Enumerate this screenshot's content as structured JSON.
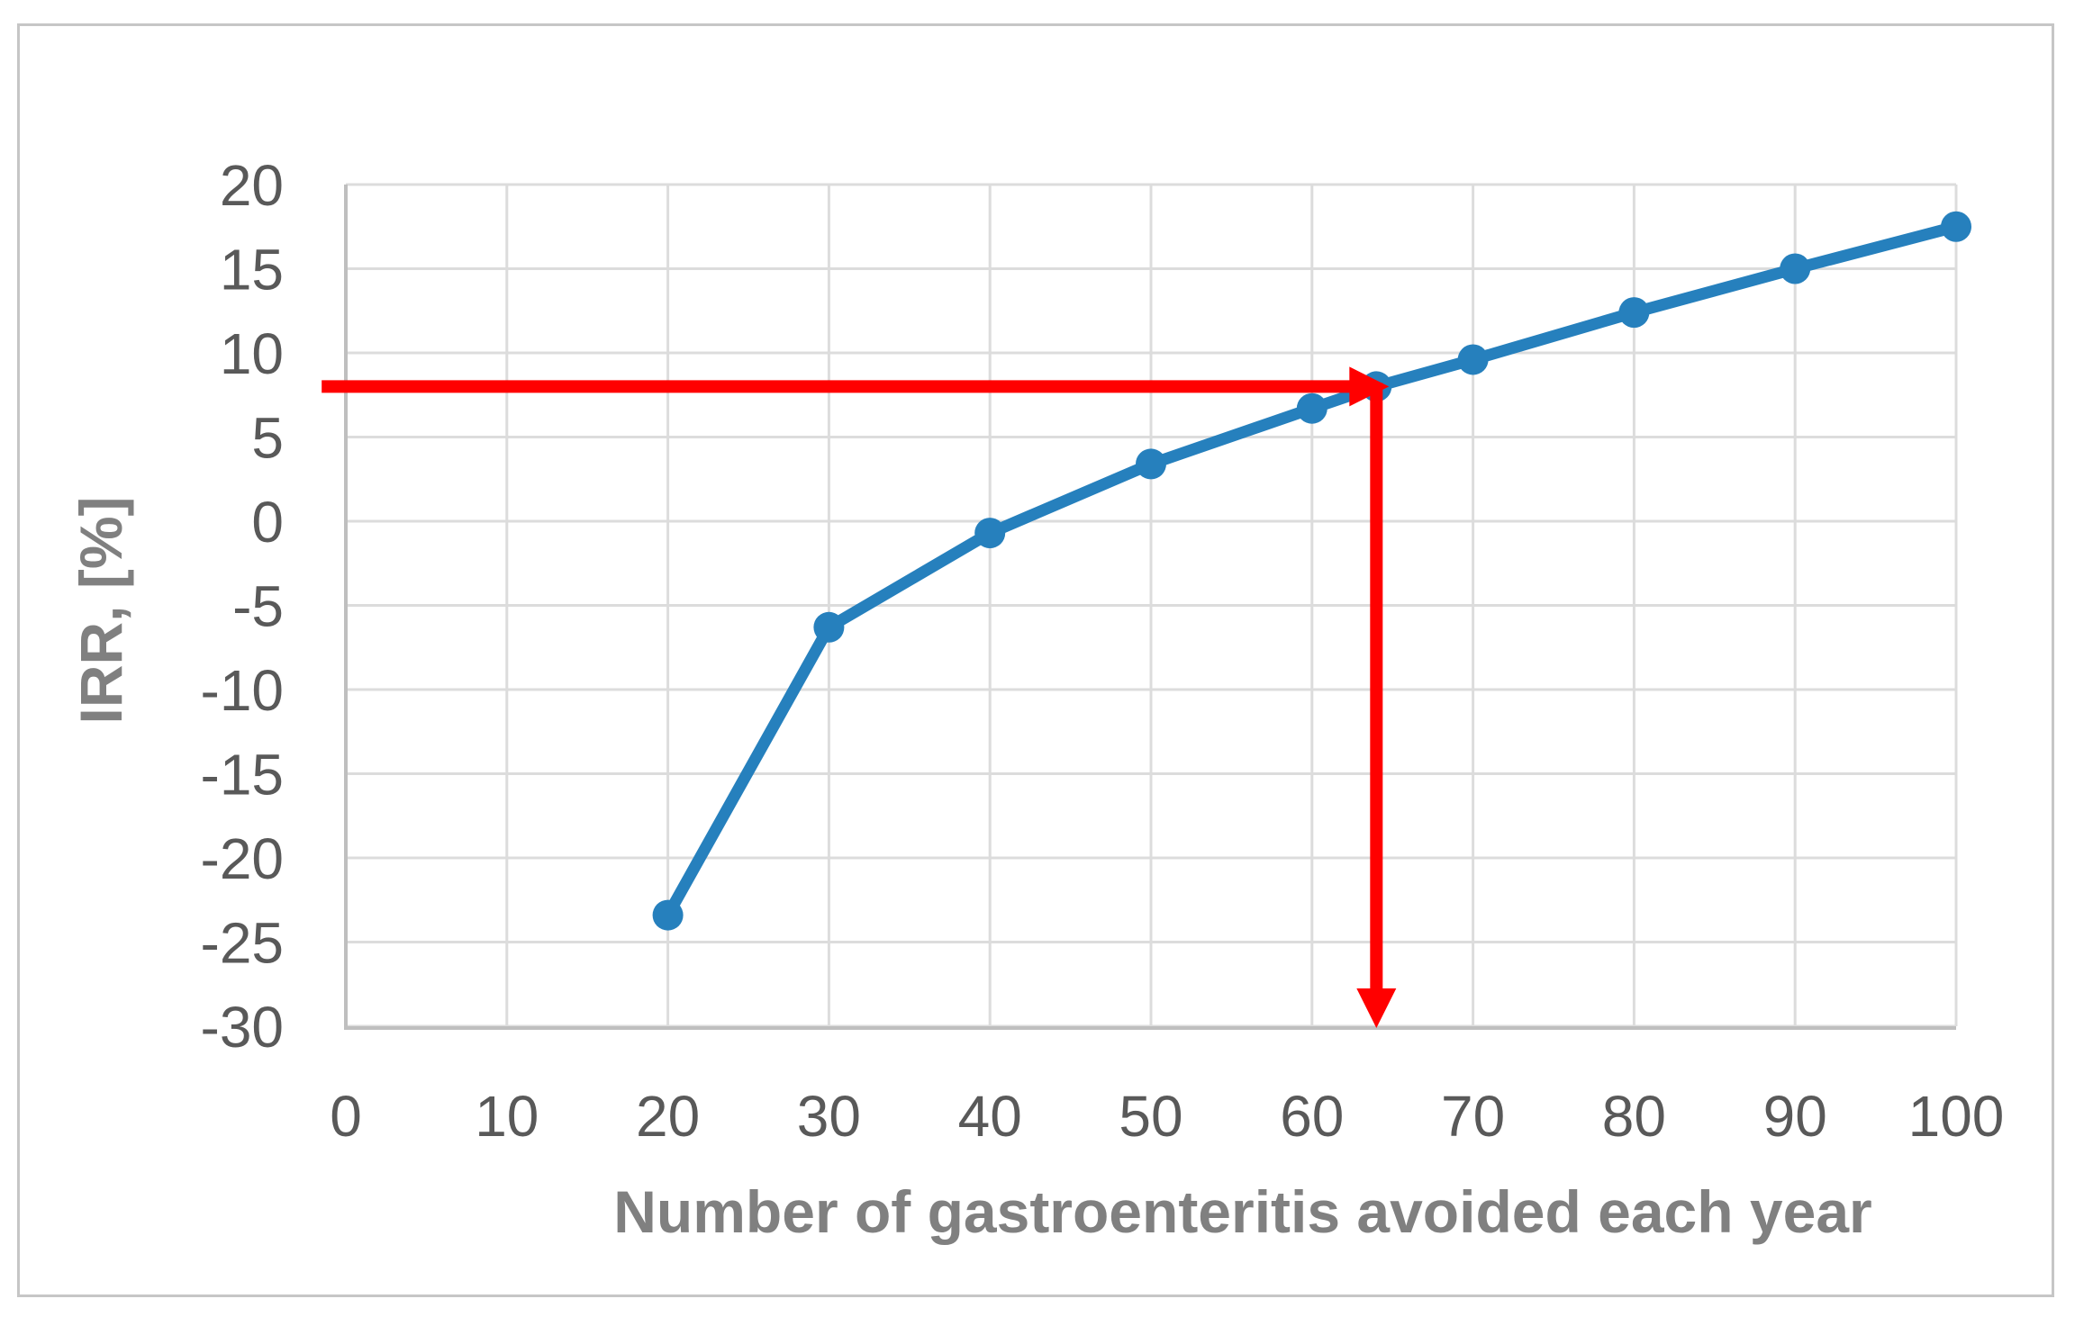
{
  "figure": {
    "background": "#ffffff",
    "border_color": "#c6c6c6"
  },
  "chart_data": {
    "type": "line",
    "title": "",
    "xlabel": "Number of gastroenteritis avoided each year",
    "ylabel": "IRR, [%]",
    "xlim": [
      0,
      100
    ],
    "ylim": [
      -30,
      20
    ],
    "x_ticks": [
      0,
      10,
      20,
      30,
      40,
      50,
      60,
      70,
      80,
      90,
      100
    ],
    "y_ticks": [
      20,
      15,
      10,
      5,
      0,
      -5,
      -10,
      -15,
      -20,
      -25,
      -30
    ],
    "grid": true,
    "legend": "none",
    "series": [
      {
        "name": "IRR",
        "color": "#2680BD",
        "marker": "circle",
        "points": [
          {
            "x": 20,
            "y": -23.4
          },
          {
            "x": 30,
            "y": -6.3
          },
          {
            "x": 40,
            "y": -0.7
          },
          {
            "x": 50,
            "y": 3.4
          },
          {
            "x": 60,
            "y": 6.7
          },
          {
            "x": 64,
            "y": 8.0
          },
          {
            "x": 70,
            "y": 9.6
          },
          {
            "x": 80,
            "y": 12.4
          },
          {
            "x": 90,
            "y": 15.0
          },
          {
            "x": 100,
            "y": 17.5
          }
        ]
      }
    ],
    "annotation": {
      "description": "red arrows marking IRR of 8% reached at about 64 gastroenteritis avoided each year",
      "color": "#FF0000",
      "highlight_point": {
        "x": 64,
        "y": 8
      },
      "horizontal_arrow": {
        "y": 8,
        "from_x": -1.5,
        "to_x": 64
      },
      "vertical_arrow": {
        "x": 64,
        "from_y": 8,
        "to_y": -30
      }
    },
    "styles": {
      "gridline_color": "#DCDCDC",
      "axis_line_color": "#BFBFBF",
      "tick_label_color": "#595959",
      "axis_title_color": "#808080"
    }
  }
}
